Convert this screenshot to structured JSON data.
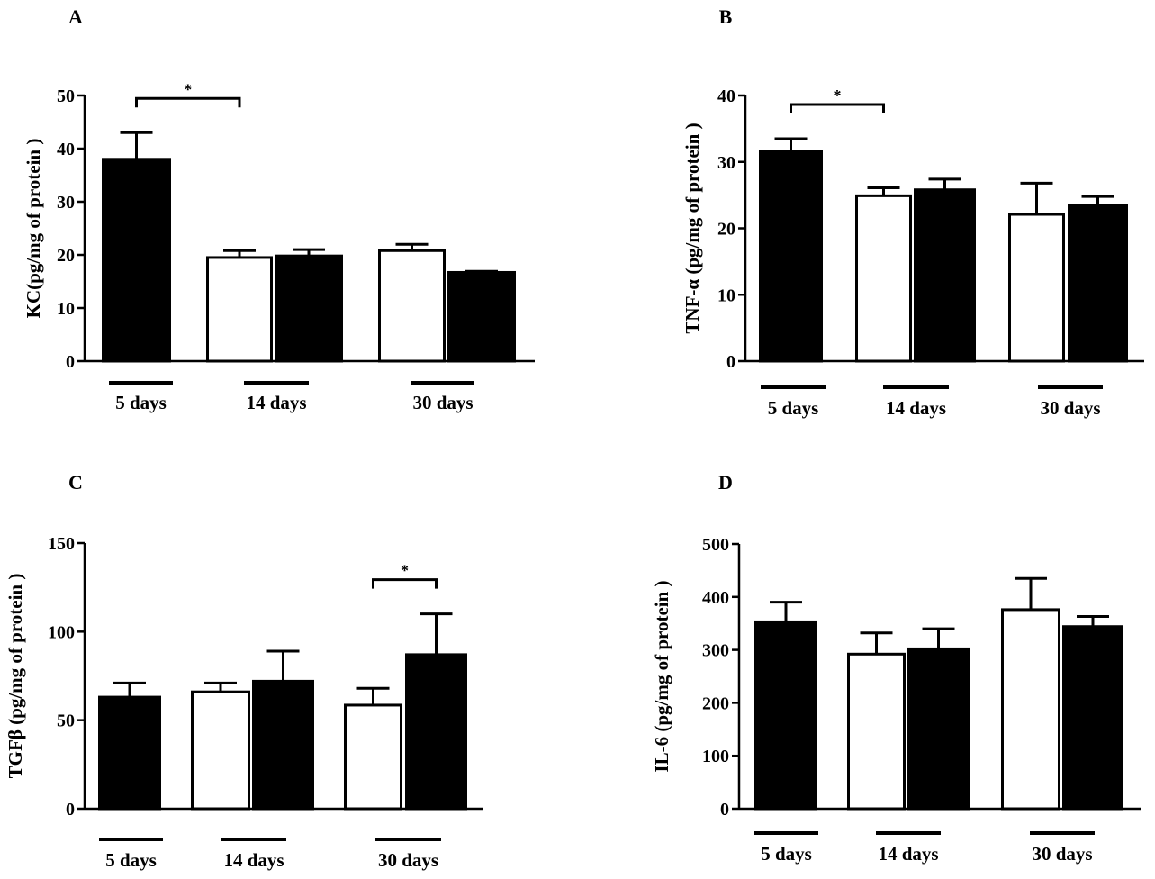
{
  "colors": {
    "filled": "#000000",
    "open": "#ffffff",
    "stroke": "#000000"
  },
  "chart_data": [
    {
      "type": "bar",
      "panel": "A",
      "ylabel": "KC(pg/mg of protein )",
      "ylim": [
        0,
        50
      ],
      "yticks": [
        0,
        10,
        20,
        30,
        40,
        50
      ],
      "groups": [
        "5 days",
        "14 days",
        "30 days"
      ],
      "bars": [
        {
          "group": "5 days",
          "fill": "filled",
          "value": 38,
          "error": 5
        },
        {
          "group": "14 days",
          "fill": "open",
          "value": 19.5,
          "error": 1.3
        },
        {
          "group": "14 days",
          "fill": "filled",
          "value": 19.8,
          "error": 1.2
        },
        {
          "group": "30 days",
          "fill": "open",
          "value": 20.8,
          "error": 1.2
        },
        {
          "group": "30 days",
          "fill": "filled",
          "value": 16.7,
          "error": 0.2
        }
      ],
      "significance": [
        {
          "from": 0,
          "to": 1,
          "label": "*"
        }
      ]
    },
    {
      "type": "bar",
      "panel": "B",
      "ylabel": "TNF-α (pg/mg of protein )",
      "ylim": [
        0,
        40
      ],
      "yticks": [
        0,
        10,
        20,
        30,
        40
      ],
      "groups": [
        "5 days",
        "14 days",
        "30 days"
      ],
      "bars": [
        {
          "group": "5 days",
          "fill": "filled",
          "value": 31.6,
          "error": 1.9
        },
        {
          "group": "14 days",
          "fill": "open",
          "value": 24.9,
          "error": 1.2
        },
        {
          "group": "14 days",
          "fill": "filled",
          "value": 25.8,
          "error": 1.6
        },
        {
          "group": "30 days",
          "fill": "open",
          "value": 22.1,
          "error": 4.7
        },
        {
          "group": "30 days",
          "fill": "filled",
          "value": 23.4,
          "error": 1.4
        }
      ],
      "significance": [
        {
          "from": 0,
          "to": 1,
          "label": "*"
        }
      ]
    },
    {
      "type": "bar",
      "panel": "C",
      "ylabel": "TGFβ (pg/mg of protein )",
      "ylim": [
        0,
        150
      ],
      "yticks": [
        0,
        50,
        100,
        150
      ],
      "groups": [
        "5 days",
        "14 days",
        "30 days"
      ],
      "bars": [
        {
          "group": "5 days",
          "fill": "filled",
          "value": 63,
          "error": 8
        },
        {
          "group": "14 days",
          "fill": "open",
          "value": 66,
          "error": 5
        },
        {
          "group": "14 days",
          "fill": "filled",
          "value": 72,
          "error": 17
        },
        {
          "group": "30 days",
          "fill": "open",
          "value": 58.5,
          "error": 9.5
        },
        {
          "group": "30 days",
          "fill": "filled",
          "value": 87,
          "error": 23
        }
      ],
      "significance": [
        {
          "from": 3,
          "to": 4,
          "label": "*"
        }
      ]
    },
    {
      "type": "bar",
      "panel": "D",
      "ylabel": "IL-6 (pg/mg of protein )",
      "ylim": [
        0,
        500
      ],
      "yticks": [
        0,
        100,
        200,
        300,
        400,
        500
      ],
      "groups": [
        "5 days",
        "14 days",
        "30 days"
      ],
      "bars": [
        {
          "group": "5 days",
          "fill": "filled",
          "value": 353,
          "error": 37
        },
        {
          "group": "14 days",
          "fill": "open",
          "value": 292,
          "error": 40
        },
        {
          "group": "14 days",
          "fill": "filled",
          "value": 302,
          "error": 38
        },
        {
          "group": "30 days",
          "fill": "open",
          "value": 376,
          "error": 59
        },
        {
          "group": "30 days",
          "fill": "filled",
          "value": 344,
          "error": 19
        }
      ],
      "significance": []
    }
  ]
}
